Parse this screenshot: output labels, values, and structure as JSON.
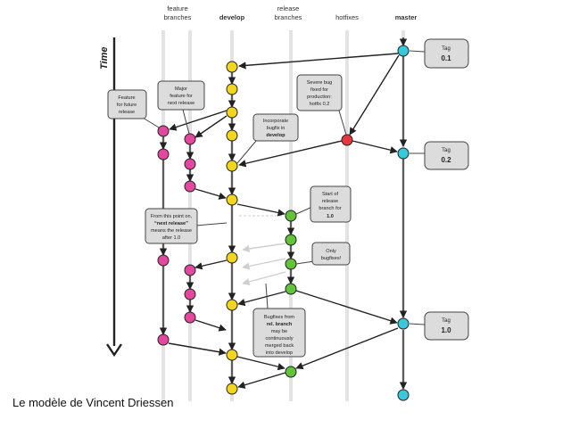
{
  "columns": [
    {
      "key": "feature",
      "line1": "feature",
      "line2": "branches",
      "bold": false
    },
    {
      "key": "develop",
      "line1": "develop",
      "line2": "",
      "bold": true
    },
    {
      "key": "release",
      "line1": "release",
      "line2": "branches",
      "bold": false
    },
    {
      "key": "hotfix",
      "line1": "hotfixes",
      "line2": "",
      "bold": false
    },
    {
      "key": "master",
      "line1": "master",
      "line2": "",
      "bold": true
    }
  ],
  "time_label": "Time",
  "tags": [
    {
      "lines": [
        "Tag",
        "0.1"
      ]
    },
    {
      "lines": [
        "Tag",
        "0.2"
      ]
    },
    {
      "lines": [
        "Tag",
        "1.0"
      ]
    }
  ],
  "callouts": [
    {
      "lines": [
        "Feature",
        "for future",
        "release"
      ]
    },
    {
      "lines": [
        "Major",
        "feature for",
        "next release"
      ]
    },
    {
      "lines": [
        "Severe bug",
        "fixed for",
        "production:",
        "hotfix 0.2"
      ]
    },
    {
      "lines": [
        "Incorporate",
        "bugfix in",
        "develop"
      ]
    },
    {
      "lines": [
        "Start of",
        "release",
        "branch for",
        "1.0"
      ]
    },
    {
      "lines": [
        "From this point on,",
        "“next release”",
        "means the release",
        "after 1.0"
      ]
    },
    {
      "lines": [
        "Only",
        "bugfixes!"
      ]
    },
    {
      "lines": [
        "Bugfixes from",
        "rel. branch",
        "may be",
        "continuously",
        "merged back",
        "into develop"
      ]
    }
  ],
  "colors": {
    "feature": "#e2489e",
    "develop": "#f2d61e",
    "release": "#62c23a",
    "hotfix": "#e5373f",
    "master": "#38c8dc"
  },
  "caption": "Le modèle de Vincent Driessen"
}
